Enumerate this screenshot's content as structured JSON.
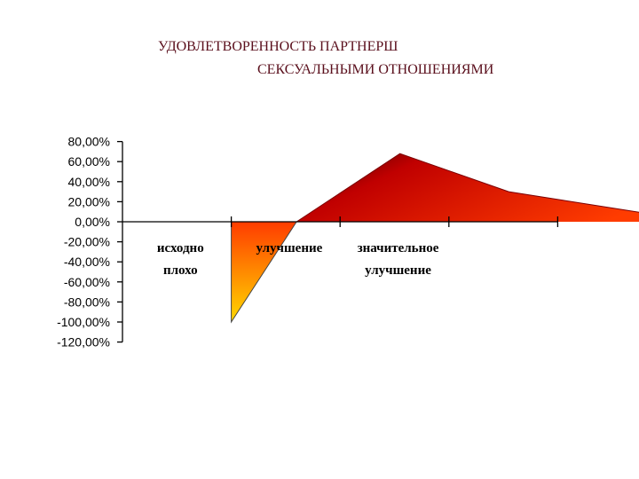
{
  "title_lines": [
    "УДОВЛЕТВОРЕННОСТЬ ПАРТНЕРШ",
    "СЕКСУАЛЬНЫМИ ОТНОШЕНИЯМИ"
  ],
  "chart_data": {
    "type": "area",
    "title": "УДОВЛЕТВОРЕННОСТЬ ПАРТНЕРШ СЕКСУАЛЬНЫМИ ОТНОШЕНИЯМИ",
    "xlabel": "",
    "ylabel": "",
    "ylim": [
      -120,
      80
    ],
    "yticks": [
      80,
      60,
      40,
      20,
      0,
      -20,
      -40,
      -60,
      -80,
      -100,
      -120
    ],
    "ytick_labels": [
      "80,00%",
      "60,00%",
      "40,00%",
      "20,00%",
      "0,00%",
      "-20,00%",
      "-40,00%",
      "-60,00%",
      "-80,00%",
      "-100,00%",
      "-120,00%"
    ],
    "categories": [
      {
        "lines": [
          "исходно",
          "плохо"
        ]
      },
      {
        "lines": [
          "улучшение"
        ]
      },
      {
        "lines": [
          "значительное",
          "улучшение"
        ]
      },
      {
        "lines": []
      }
    ],
    "x": [
      1,
      1.6,
      2.55,
      3.55,
      5.3
    ],
    "values": [
      -100,
      0,
      68,
      30,
      0
    ],
    "grid": false,
    "colors": {
      "low": "#ffd800",
      "mid": "#ff3c00",
      "high": "#c00000",
      "dark": "#3a0000"
    }
  }
}
